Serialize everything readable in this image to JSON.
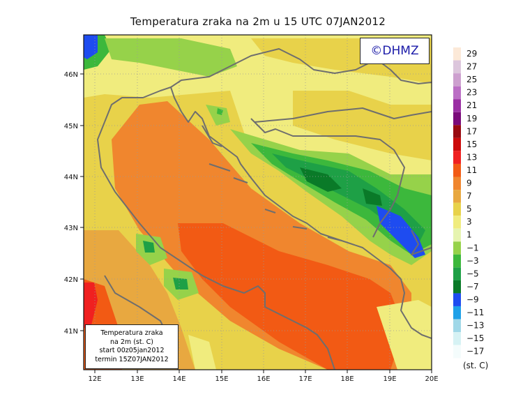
{
  "title": "Temperatura zraka na 2m u 15 UTC 07JAN2012",
  "logo": "©DHMZ",
  "info_box": {
    "line1": "Temperatura zraka",
    "line2": "na 2m (st. C)",
    "line3": "start 00z05jan2012",
    "line4": "termin 15Z07JAN2012"
  },
  "lon_labels": [
    "12E",
    "13E",
    "14E",
    "15E",
    "16E",
    "17E",
    "18E",
    "19E",
    "20E"
  ],
  "lat_labels": [
    "41N",
    "42N",
    "43N",
    "44N",
    "45N",
    "46N"
  ],
  "legend": {
    "unit": "(st. C)",
    "labels": [
      "29",
      "27",
      "25",
      "23",
      "21",
      "19",
      "17",
      "15",
      "13",
      "11",
      "9",
      "7",
      "5",
      "3",
      "1",
      "−1",
      "−3",
      "−5",
      "−7",
      "−9",
      "−11",
      "−13",
      "−15",
      "−17"
    ],
    "colors": [
      "#fce9d8",
      "#dcc6dc",
      "#cda0cf",
      "#bb6ec5",
      "#9a2ea3",
      "#7a0a7a",
      "#990a10",
      "#cc0a0a",
      "#f02020",
      "#f25a14",
      "#f0862e",
      "#e8a840",
      "#e8d24a",
      "#f0ec7e",
      "#e6f4b0",
      "#96d24a",
      "#3cb83c",
      "#1ea046",
      "#0a7a28",
      "#1e4cf0",
      "#1ea0e8",
      "#a0d8e8",
      "#d6f2f4",
      "#f4fcfc"
    ]
  },
  "colors": {
    "coast": "#6e6e6e",
    "grid": "#999999",
    "sea_warm": "#f25a14",
    "sea_mild": "#f0862e",
    "land_mild": "#e8a840",
    "land_cool": "#e8d24a",
    "mountain_cold": "#3cb83c",
    "mountain_colder": "#1ea046"
  }
}
